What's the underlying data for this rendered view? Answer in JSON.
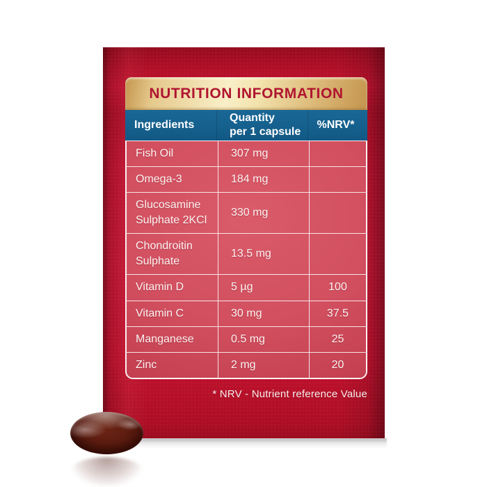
{
  "package": {
    "banner_title": "NUTRITION INFORMATION",
    "footnote": "* NRV - Nutrient reference Value"
  },
  "table": {
    "columns": {
      "ingredients": "Ingredients",
      "quantity": "Quantity\nper 1 capsule",
      "nrv": "%NRV*"
    },
    "rows": [
      {
        "ingredient": "Fish Oil",
        "quantity": "307 mg",
        "nrv": ""
      },
      {
        "ingredient": "Omega-3",
        "quantity": "184 mg",
        "nrv": ""
      },
      {
        "ingredient": "Glucosamine Sulphate 2KCl",
        "quantity": "330 mg",
        "nrv": ""
      },
      {
        "ingredient": "Chondroitin Sulphate",
        "quantity": "13.5 mg",
        "nrv": ""
      },
      {
        "ingredient": "Vitamin D",
        "quantity": "5 µg",
        "nrv": "100"
      },
      {
        "ingredient": "Vitamin C",
        "quantity": "30 mg",
        "nrv": "37.5"
      },
      {
        "ingredient": "Manganese",
        "quantity": "0.5 mg",
        "nrv": "25"
      },
      {
        "ingredient": "Zinc",
        "quantity": "2 mg",
        "nrv": "20"
      }
    ]
  },
  "colors": {
    "package_red": "#c41634",
    "row_pink": "#d25060",
    "header_blue": "#15608d",
    "banner_gold": "#f3e2ae",
    "banner_text_red": "#b01531",
    "table_text": "#fbf3f1",
    "capsule_brown": "#5c1c10"
  }
}
